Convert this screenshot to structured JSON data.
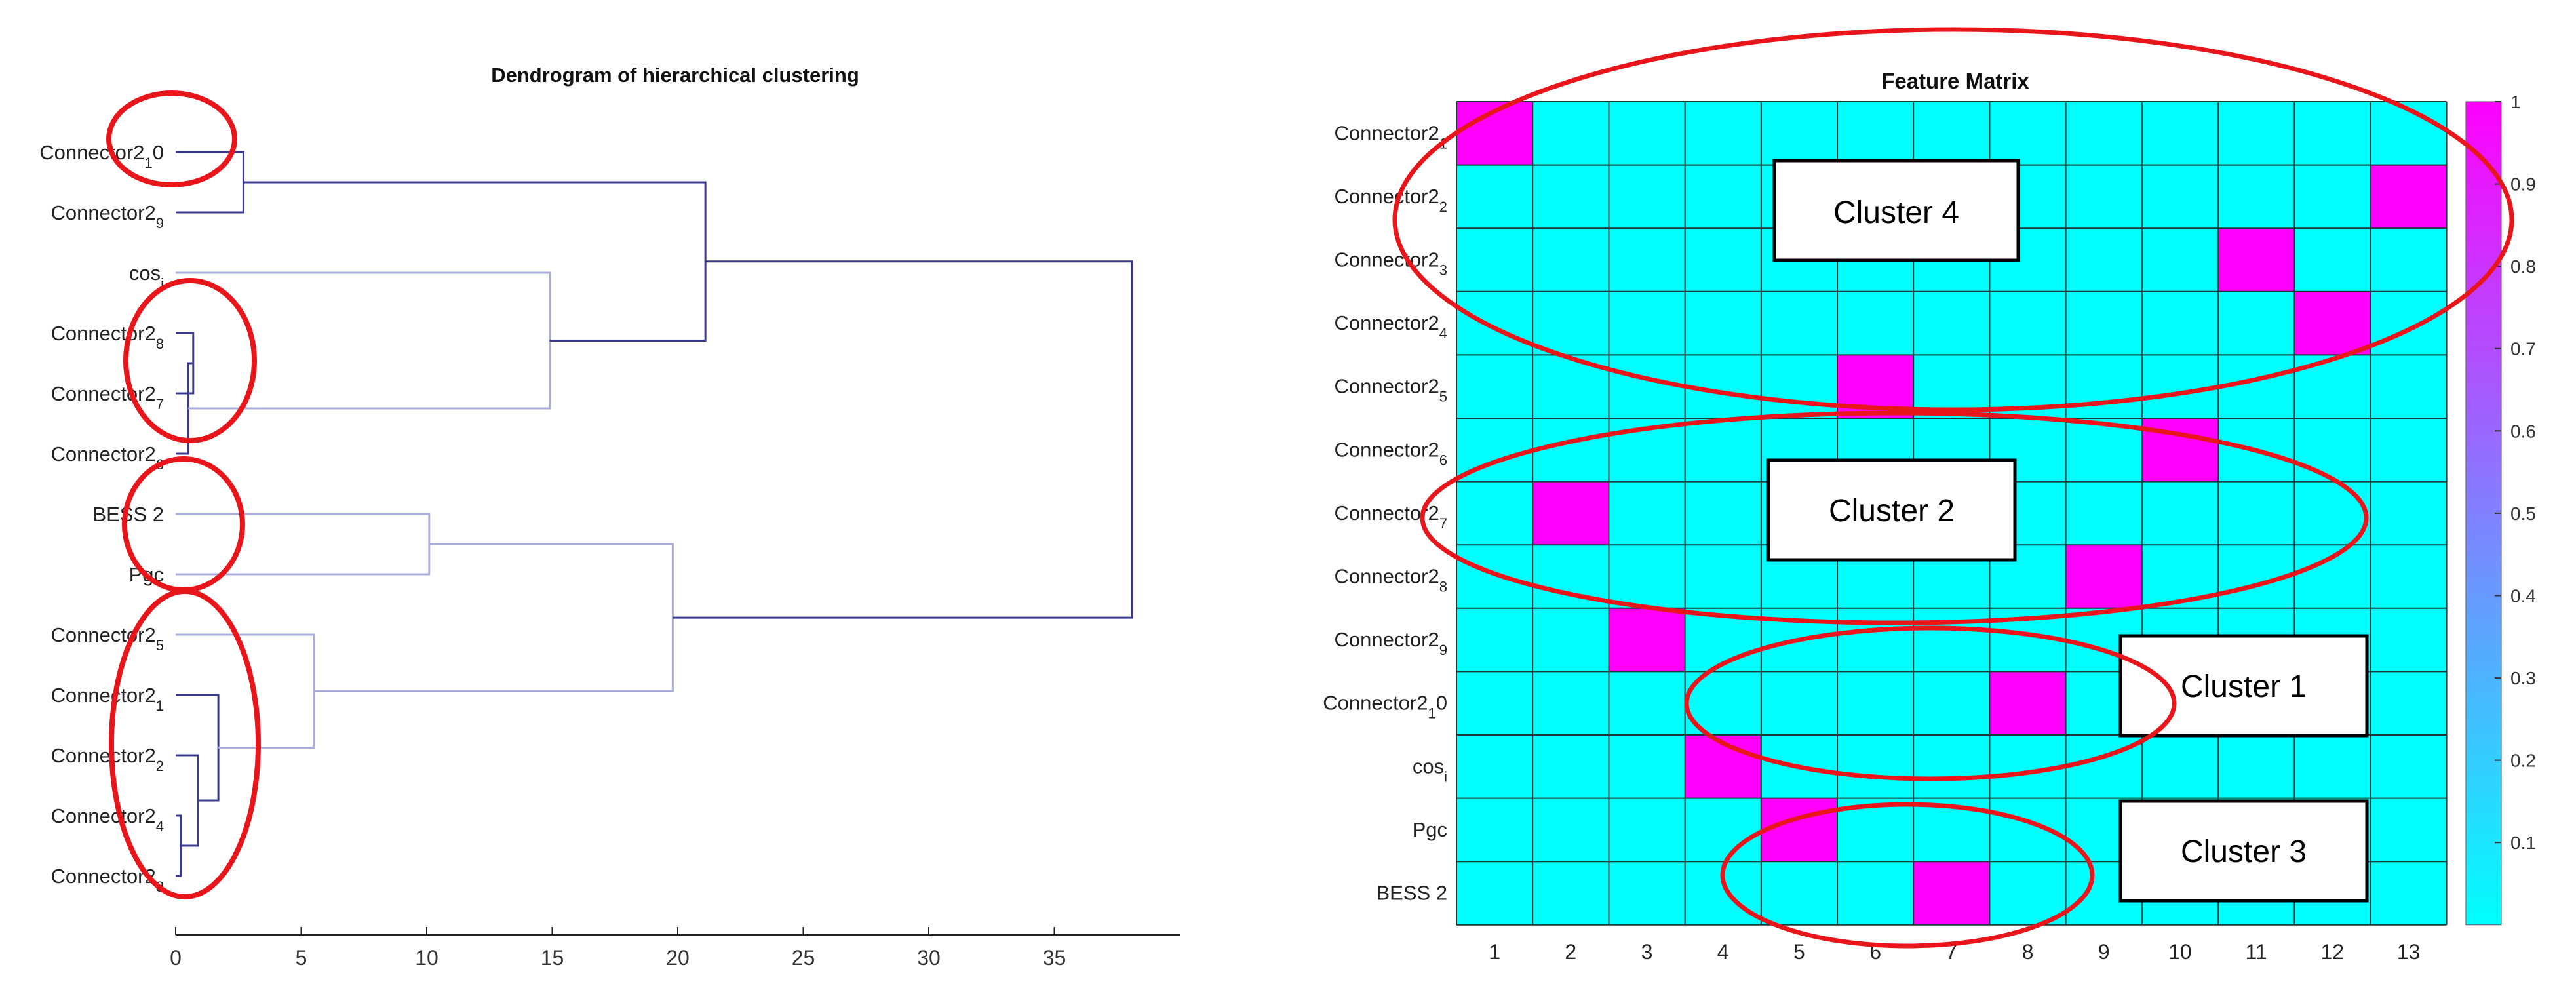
{
  "chart_data": [
    {
      "type": "dendrogram",
      "title": "Dendrogram of hierarchical clustering",
      "leaves": [
        {
          "base": "Connector2",
          "sub": "1",
          "suffix": "0"
        },
        {
          "base": "Connector2",
          "sub": "9",
          "suffix": ""
        },
        {
          "base": "cos",
          "sub": "i",
          "suffix": ""
        },
        {
          "base": "Connector2",
          "sub": "8",
          "suffix": ""
        },
        {
          "base": "Connector2",
          "sub": "7",
          "suffix": ""
        },
        {
          "base": "Connector2",
          "sub": "6",
          "suffix": ""
        },
        {
          "base": "BESS 2",
          "sub": "",
          "suffix": ""
        },
        {
          "base": "Pgc",
          "sub": "",
          "suffix": ""
        },
        {
          "base": "Connector2",
          "sub": "5",
          "suffix": ""
        },
        {
          "base": "Connector2",
          "sub": "1",
          "suffix": ""
        },
        {
          "base": "Connector2",
          "sub": "2",
          "suffix": ""
        },
        {
          "base": "Connector2",
          "sub": "4",
          "suffix": ""
        },
        {
          "base": "Connector2",
          "sub": "3",
          "suffix": ""
        }
      ],
      "merges": [
        {
          "a": "L0",
          "b": "L1",
          "height": 2.7
        },
        {
          "a": "L3",
          "b": "L4",
          "height": 0.7
        },
        {
          "a": "N1",
          "b": "L5",
          "height": 0.5
        },
        {
          "a": "L2",
          "b": "N2",
          "height": 14.9
        },
        {
          "a": "N0",
          "b": "N3",
          "height": 21.1
        },
        {
          "a": "L6",
          "b": "L7",
          "height": 10.1
        },
        {
          "a": "L11",
          "b": "L12",
          "height": 0.2
        },
        {
          "a": "L10",
          "b": "N6",
          "height": 0.9
        },
        {
          "a": "L9",
          "b": "N7",
          "height": 1.7
        },
        {
          "a": "L8",
          "b": "N8",
          "height": 5.5
        },
        {
          "a": "N5",
          "b": "N9",
          "height": 19.8
        },
        {
          "a": "N4",
          "b": "N10",
          "height": 38.1
        }
      ],
      "x_ticks": [
        "0",
        "5",
        "10",
        "15",
        "20",
        "25",
        "30",
        "35"
      ],
      "xlim": [
        0,
        40
      ],
      "colors": {
        "primary": "#3a3a8c",
        "secondary": "#a8acd8"
      }
    },
    {
      "type": "heatmap",
      "title": "Feature Matrix",
      "rows": [
        {
          "base": "Connector2",
          "sub": "1",
          "suffix": ""
        },
        {
          "base": "Connector2",
          "sub": "2",
          "suffix": ""
        },
        {
          "base": "Connector2",
          "sub": "3",
          "suffix": ""
        },
        {
          "base": "Connector2",
          "sub": "4",
          "suffix": ""
        },
        {
          "base": "Connector2",
          "sub": "5",
          "suffix": ""
        },
        {
          "base": "Connector2",
          "sub": "6",
          "suffix": ""
        },
        {
          "base": "Connector2",
          "sub": "7",
          "suffix": ""
        },
        {
          "base": "Connector2",
          "sub": "8",
          "suffix": ""
        },
        {
          "base": "Connector2",
          "sub": "9",
          "suffix": ""
        },
        {
          "base": "Connector2",
          "sub": "1",
          "suffix": "0"
        },
        {
          "base": "cos",
          "sub": "i",
          "suffix": ""
        },
        {
          "base": "Pgc",
          "sub": "",
          "suffix": ""
        },
        {
          "base": "BESS 2",
          "sub": "",
          "suffix": ""
        }
      ],
      "columns": [
        "1",
        "2",
        "3",
        "4",
        "5",
        "6",
        "7",
        "8",
        "9",
        "10",
        "11",
        "12",
        "13"
      ],
      "ones": [
        {
          "row": 1,
          "col": 1
        },
        {
          "row": 2,
          "col": 13
        },
        {
          "row": 3,
          "col": 11
        },
        {
          "row": 4,
          "col": 12
        },
        {
          "row": 5,
          "col": 6
        },
        {
          "row": 6,
          "col": 10
        },
        {
          "row": 7,
          "col": 2
        },
        {
          "row": 8,
          "col": 9
        },
        {
          "row": 9,
          "col": 3
        },
        {
          "row": 10,
          "col": 8
        },
        {
          "row": 11,
          "col": 4
        },
        {
          "row": 12,
          "col": 5
        },
        {
          "row": 13,
          "col": 7
        }
      ],
      "colorbar": {
        "ticks": [
          "0.1",
          "0.2",
          "0.3",
          "0.4",
          "0.5",
          "0.6",
          "0.7",
          "0.8",
          "0.9",
          "1"
        ],
        "range": [
          0,
          1
        ],
        "low_color": "#00ffff",
        "high_color": "#ff00ff"
      },
      "cluster_boxes": [
        "Cluster 4",
        "Cluster 2",
        "Cluster 1",
        "Cluster 3"
      ]
    }
  ]
}
